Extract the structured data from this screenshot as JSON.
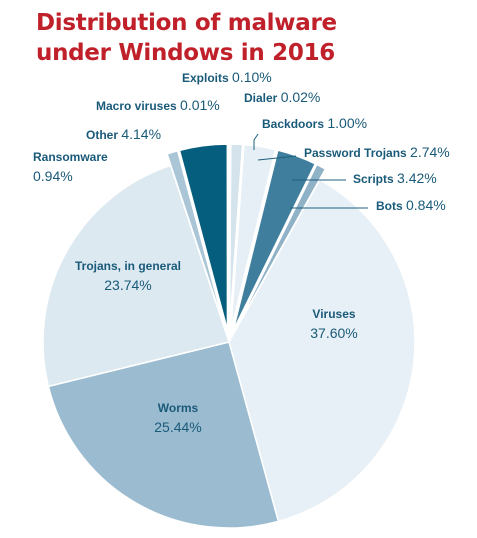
{
  "chart_data": {
    "type": "pie",
    "title_lines": [
      "Distribution of malware",
      "under Windows in 2016"
    ],
    "start_angle_deg": 0,
    "direction": "clockwise",
    "slices": [
      {
        "name": "Exploits",
        "pct": "0.10%",
        "value": 0.1,
        "color": "#6e9db8"
      },
      {
        "name": "Dialer",
        "pct": "0.02%",
        "value": 0.02,
        "color": "#6e9db8"
      },
      {
        "name": "Backdoors",
        "pct": "1.00%",
        "value": 1.0,
        "color": "#d4e3ec"
      },
      {
        "name": "Password Trojans",
        "pct": "2.74%",
        "value": 2.74,
        "color": "#e6eff5"
      },
      {
        "name": "Scripts",
        "pct": "3.42%",
        "value": 3.42,
        "color": "#3f7f9d"
      },
      {
        "name": "Bots",
        "pct": "0.84%",
        "value": 0.84,
        "color": "#8fb2c7"
      },
      {
        "name": "Viruses",
        "pct": "37.60%",
        "value": 37.6,
        "color": "#e7f0f6"
      },
      {
        "name": "Worms",
        "pct": "25.44%",
        "value": 25.44,
        "color": "#9bbcd0"
      },
      {
        "name": "Trojans, in general",
        "pct": "23.74%",
        "value": 23.74,
        "color": "#dce9f1"
      },
      {
        "name": "Ransomware",
        "pct": "0.94%",
        "value": 0.94,
        "color": "#a9c5d6"
      },
      {
        "name": "Other",
        "pct": "4.14%",
        "value": 4.14,
        "color": "#065e7e"
      },
      {
        "name": "Macro viruses",
        "pct": "0.01%",
        "value": 0.01,
        "color": "#6e9db8"
      }
    ]
  }
}
